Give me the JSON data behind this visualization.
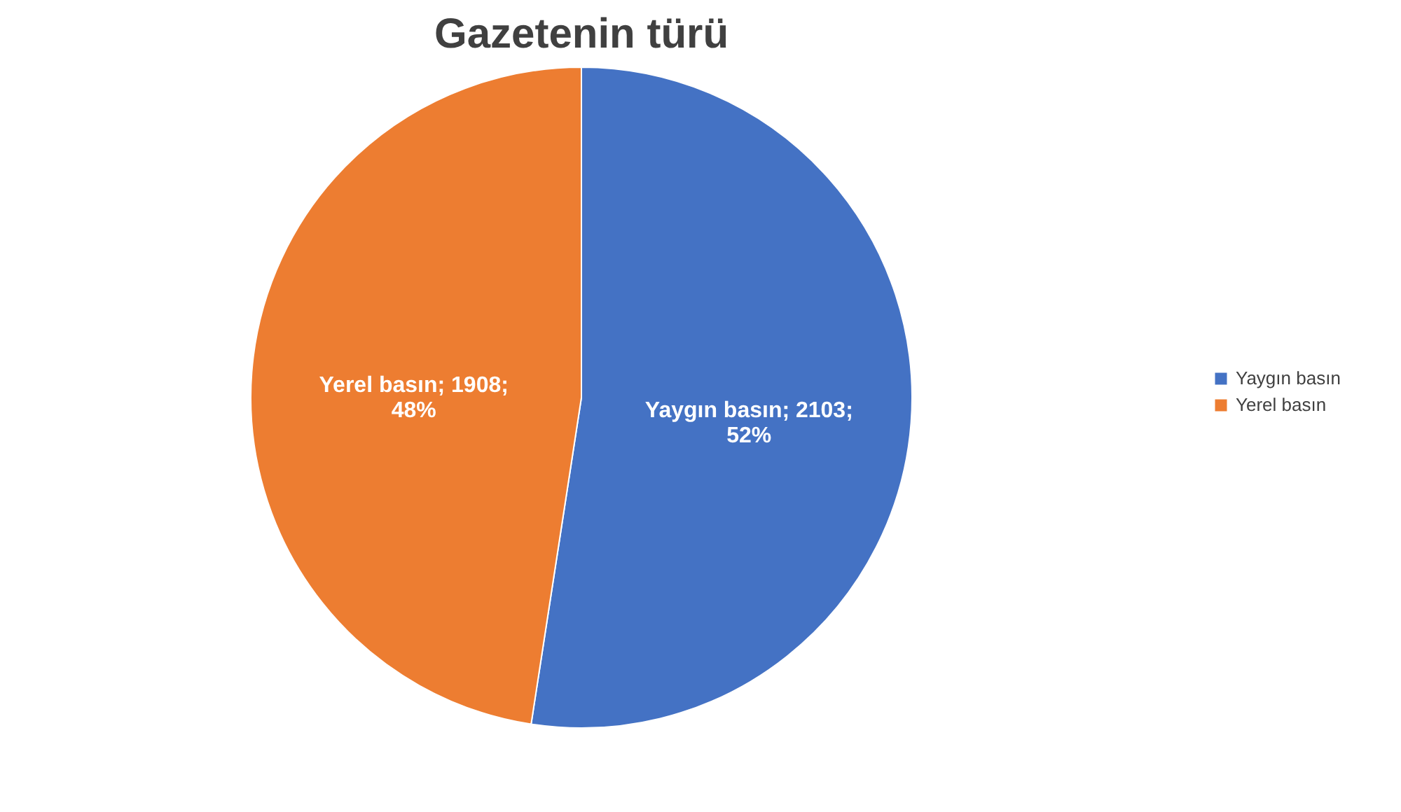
{
  "chart_data": {
    "type": "pie",
    "title": "Gazetenin türü",
    "categories": [
      "Yaygın basın",
      "Yerel basın"
    ],
    "values": [
      2103,
      1908
    ],
    "colors": [
      "#4472c4",
      "#ed7d31"
    ],
    "value_labels": [
      "Yaygın basın; 2103; 52%",
      "Yerel basın; 1908; 48%"
    ],
    "legend": "right"
  }
}
